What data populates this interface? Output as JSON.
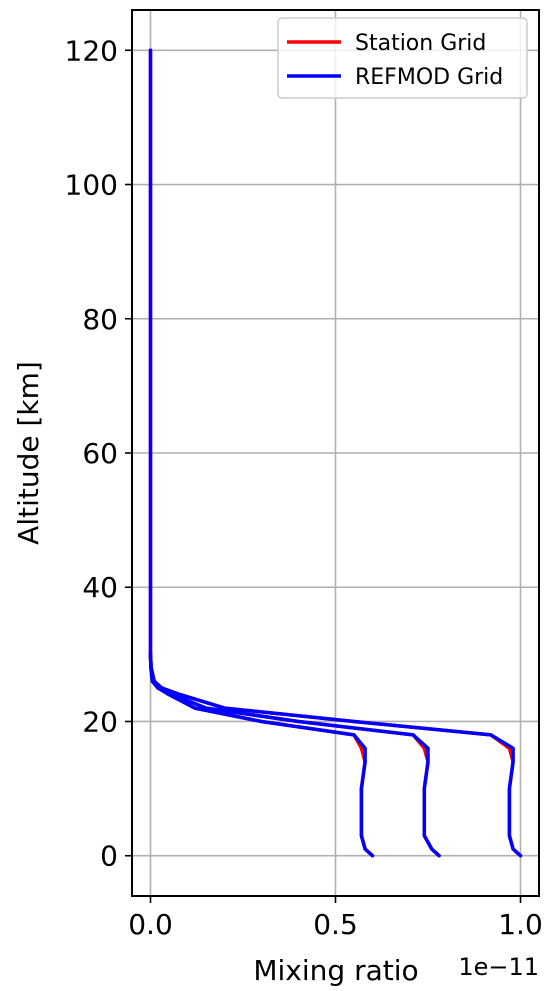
{
  "chart_data": {
    "type": "line",
    "title": "",
    "xlabel": "Mixing ratio",
    "ylabel": "Altitude [km]",
    "x_scale_label": "1e−11",
    "x_scale_factor": 1e-11,
    "xlim": [
      -0.05,
      1.05
    ],
    "ylim": [
      -6,
      126
    ],
    "xticks": [
      0.0,
      0.5,
      1.0
    ],
    "xtick_labels": [
      "0.0",
      "0.5",
      "1.0"
    ],
    "yticks": [
      0,
      20,
      40,
      60,
      80,
      100,
      120
    ],
    "ytick_labels": [
      "0",
      "20",
      "40",
      "60",
      "80",
      "100",
      "120"
    ],
    "grid": true,
    "legend_position": "top-right",
    "series": [
      {
        "name": "Station Grid",
        "color": "#ff0000",
        "profiles": [
          {
            "x": [
              0.6,
              0.58,
              0.57,
              0.57,
              0.57,
              0.58,
              0.57,
              0.55,
              0.3,
              0.12,
              0.05,
              0.02,
              0.005,
              0.001,
              0.0,
              0.0,
              0.0,
              0.0,
              0.0,
              0.0,
              0.0
            ],
            "y": [
              0,
              1,
              3,
              6,
              10,
              14,
              16,
              18,
              20,
              22,
              24,
              25,
              26,
              28,
              30,
              40,
              60,
              80,
              100,
              110,
              120
            ]
          },
          {
            "x": [
              0.78,
              0.76,
              0.74,
              0.74,
              0.74,
              0.75,
              0.74,
              0.71,
              0.4,
              0.15,
              0.06,
              0.02,
              0.008,
              0.001,
              0.0
            ],
            "y": [
              0,
              1,
              3,
              6,
              10,
              14,
              16,
              18,
              20,
              22,
              24,
              25,
              26,
              28,
              30
            ]
          },
          {
            "x": [
              1.0,
              0.98,
              0.97,
              0.97,
              0.97,
              0.98,
              0.97,
              0.92,
              0.55,
              0.2,
              0.08,
              0.03,
              0.01,
              0.002,
              0.0
            ],
            "y": [
              0,
              1,
              3,
              6,
              10,
              14,
              16,
              18,
              20,
              22,
              24,
              25,
              26,
              28,
              30
            ]
          }
        ]
      },
      {
        "name": "REFMOD Grid",
        "color": "#0000ff",
        "profiles": [
          {
            "x": [
              0.6,
              0.58,
              0.57,
              0.57,
              0.57,
              0.58,
              0.58,
              0.55,
              0.3,
              0.12,
              0.05,
              0.02,
              0.005,
              0.001,
              0.0,
              0.0,
              0.0,
              0.0,
              0.0,
              0.0,
              0.0
            ],
            "y": [
              0,
              1,
              3,
              6,
              10,
              14,
              16,
              18,
              20,
              22,
              24,
              25,
              26,
              28,
              30,
              40,
              60,
              80,
              100,
              110,
              120
            ]
          },
          {
            "x": [
              0.78,
              0.76,
              0.74,
              0.74,
              0.74,
              0.75,
              0.75,
              0.71,
              0.4,
              0.15,
              0.06,
              0.02,
              0.008,
              0.001,
              0.0
            ],
            "y": [
              0,
              1,
              3,
              6,
              10,
              14,
              16,
              18,
              20,
              22,
              24,
              25,
              26,
              28,
              30
            ]
          },
          {
            "x": [
              1.0,
              0.98,
              0.97,
              0.97,
              0.97,
              0.98,
              0.98,
              0.92,
              0.55,
              0.2,
              0.08,
              0.03,
              0.01,
              0.002,
              0.0
            ],
            "y": [
              0,
              1,
              3,
              6,
              10,
              14,
              16,
              18,
              20,
              22,
              24,
              25,
              26,
              28,
              30
            ]
          }
        ]
      }
    ]
  }
}
